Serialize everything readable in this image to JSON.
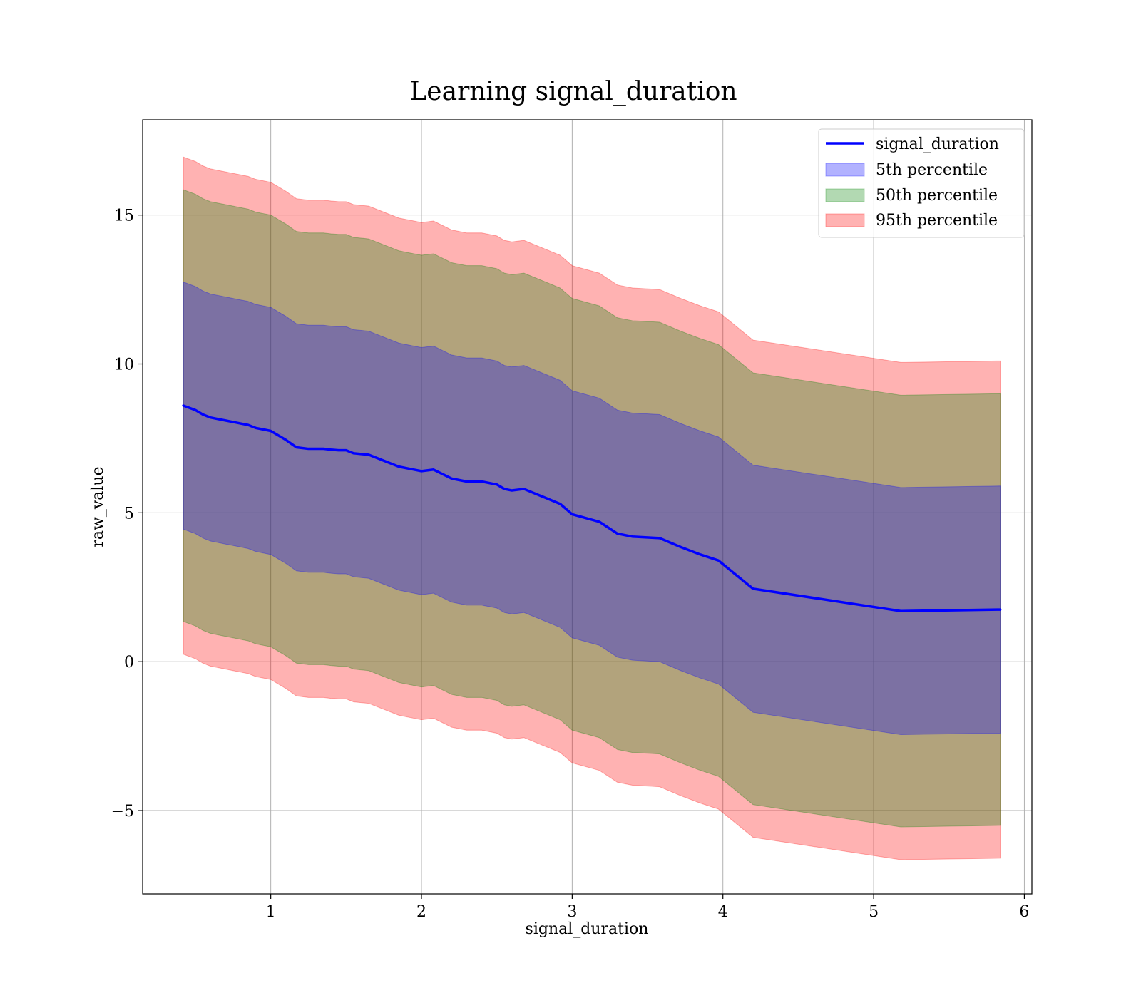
{
  "chart_data": {
    "type": "area",
    "title": "Learning signal_duration",
    "xlabel": "signal_duration",
    "ylabel": "raw_value",
    "xlim": [
      0.15,
      6.05
    ],
    "ylim": [
      -7.8,
      18.2
    ],
    "xticks": [
      1,
      2,
      3,
      4,
      5,
      6
    ],
    "yticks": [
      -5,
      0,
      5,
      10,
      15
    ],
    "ytick_labels": [
      "−5",
      "0",
      "5",
      "10",
      "15"
    ],
    "grid": true,
    "legend_position": "top-right",
    "x": [
      0.42,
      0.5,
      0.55,
      0.6,
      0.65,
      0.7,
      0.75,
      0.8,
      0.85,
      0.9,
      0.95,
      1.0,
      1.05,
      1.1,
      1.17,
      1.25,
      1.3,
      1.35,
      1.4,
      1.45,
      1.5,
      1.55,
      1.65,
      1.75,
      1.85,
      1.95,
      2.0,
      2.08,
      2.2,
      2.3,
      2.4,
      2.5,
      2.55,
      2.6,
      2.68,
      2.8,
      2.92,
      3.0,
      3.18,
      3.3,
      3.4,
      3.58,
      3.72,
      3.85,
      3.97,
      4.2,
      5.18,
      5.84
    ],
    "series": [
      {
        "name": "signal_duration",
        "role": "line",
        "color": "#0000ff",
        "values": [
          8.6,
          8.45,
          8.3,
          8.2,
          8.15,
          8.1,
          8.05,
          8.0,
          7.95,
          7.85,
          7.8,
          7.75,
          7.6,
          7.45,
          7.2,
          7.15,
          7.15,
          7.15,
          7.12,
          7.1,
          7.1,
          7.0,
          6.95,
          6.75,
          6.55,
          6.45,
          6.4,
          6.45,
          6.15,
          6.05,
          6.05,
          5.95,
          5.8,
          5.75,
          5.8,
          5.55,
          5.3,
          4.95,
          4.7,
          4.3,
          4.2,
          4.15,
          3.85,
          3.6,
          3.4,
          2.45,
          1.7,
          1.75
        ]
      },
      {
        "name": "5th percentile",
        "role": "band",
        "color": "#0000ff",
        "half_width": 4.15
      },
      {
        "name": "50th percentile",
        "role": "band",
        "color": "#008000",
        "half_width": 7.25
      },
      {
        "name": "95th percentile",
        "role": "band",
        "color": "#ff0000",
        "half_width": 8.35
      }
    ]
  }
}
